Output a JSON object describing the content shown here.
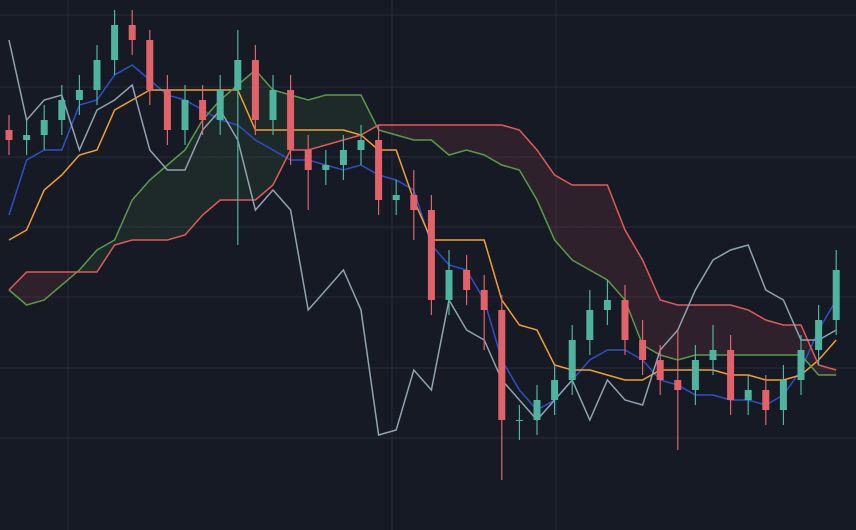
{
  "chart_data": {
    "type": "candlestick",
    "ylim": [
      0,
      106
    ],
    "up_color": "#4fb3a0",
    "down_color": "#e0636a",
    "open": [
      80,
      78,
      79,
      82,
      86,
      88,
      94,
      101,
      98,
      88,
      80,
      86,
      82,
      88,
      94,
      82,
      88,
      76,
      72,
      73,
      76,
      78,
      66,
      67,
      64,
      46,
      52,
      48,
      44,
      22,
      22,
      26,
      30,
      38,
      44,
      46,
      38,
      34,
      30,
      28,
      34,
      36,
      26,
      28,
      24,
      30,
      36,
      42
    ],
    "close": [
      78,
      79,
      82,
      86,
      88,
      94,
      101,
      98,
      88,
      80,
      86,
      82,
      88,
      94,
      82,
      88,
      76,
      72,
      73,
      76,
      78,
      66,
      67,
      64,
      46,
      52,
      48,
      44,
      22,
      22,
      26,
      30,
      38,
      44,
      46,
      38,
      34,
      30,
      28,
      34,
      36,
      26,
      28,
      24,
      30,
      36,
      42,
      52
    ],
    "high": [
      83,
      82,
      85,
      89,
      91,
      97,
      104,
      104,
      100,
      91,
      89,
      89,
      91,
      100,
      97,
      91,
      91,
      79,
      76,
      79,
      81,
      81,
      70,
      72,
      67,
      56,
      55,
      51,
      47,
      25,
      29,
      33,
      41,
      48,
      50,
      49,
      42,
      37,
      40,
      37,
      41,
      39,
      31,
      31,
      33,
      39,
      45,
      56
    ],
    "low": [
      75,
      75,
      76,
      79,
      83,
      85,
      91,
      95,
      85,
      77,
      77,
      79,
      79,
      57,
      79,
      79,
      73,
      64,
      69,
      70,
      73,
      63,
      63,
      58,
      43,
      43,
      45,
      36,
      10,
      18,
      19,
      23,
      27,
      35,
      41,
      35,
      31,
      27,
      16,
      25,
      31,
      23,
      23,
      21,
      21,
      27,
      33,
      39
    ],
    "series": [
      {
        "color": "#2e4fc7",
        "values": [
          63,
          74,
          76,
          76,
          85,
          86,
          91,
          93,
          90,
          87,
          86,
          84,
          82,
          81,
          78,
          76,
          74,
          74,
          73,
          72,
          73,
          71,
          70,
          68,
          57,
          53,
          52,
          46,
          34,
          28,
          24,
          26,
          30,
          34,
          36,
          36,
          34,
          30,
          29,
          27,
          27,
          26,
          26,
          25,
          27,
          32,
          40,
          46
        ]
      },
      {
        "color": "#f0a030",
        "values": [
          58,
          60,
          68,
          71,
          75,
          76,
          84,
          86,
          88,
          88,
          88,
          88,
          88,
          88,
          80,
          80,
          80,
          80,
          80,
          80,
          79,
          76,
          76,
          66,
          58,
          58,
          58,
          58,
          46,
          41,
          40,
          33,
          32,
          32,
          31,
          30,
          30,
          32,
          32,
          32,
          32,
          31,
          31,
          30,
          30,
          31,
          34,
          38
        ]
      },
      {
        "color": "#5a9a4a",
        "values": [
          48,
          45,
          46,
          49,
          52,
          56,
          58,
          66,
          70,
          73,
          76,
          82,
          86,
          89,
          92,
          88,
          87,
          86,
          87,
          87,
          87,
          80,
          79,
          78,
          78,
          75,
          76,
          75,
          73,
          72,
          66,
          58,
          54,
          52,
          50,
          46,
          37,
          35,
          34,
          35,
          35,
          35,
          35,
          35,
          35,
          35,
          31,
          31
        ]
      },
      {
        "color": "#e05a5a",
        "values": [
          48,
          51.6,
          51.6,
          51.6,
          51.6,
          51.6,
          57,
          58,
          58,
          58,
          59,
          63,
          66,
          66,
          66,
          69,
          76,
          76,
          77,
          78,
          79,
          81,
          81,
          81,
          81,
          81,
          81,
          81,
          81,
          80,
          76,
          71,
          69,
          69,
          69,
          60,
          54,
          46,
          45,
          45,
          45,
          45,
          44,
          42,
          41,
          41,
          33,
          32
        ]
      },
      {
        "color": "#8fa3b0",
        "values": [
          98,
          82,
          86,
          87,
          76,
          84,
          86,
          89,
          76,
          72,
          72,
          80,
          84,
          78,
          64,
          68,
          64,
          44,
          48,
          52,
          44,
          19,
          20,
          32,
          28,
          46,
          40,
          38,
          30,
          26,
          22,
          26,
          30,
          22,
          30,
          26,
          25,
          36,
          40,
          48,
          54,
          56,
          57,
          48,
          46,
          38,
          38,
          40
        ]
      }
    ],
    "cloud_up_color": "rgba(90,154,74,0.12)",
    "cloud_down_color": "rgba(224,90,90,0.12)"
  }
}
